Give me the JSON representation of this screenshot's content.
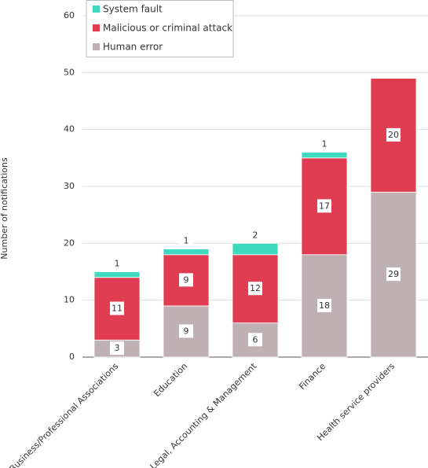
{
  "chart_data": {
    "type": "stacked-bar",
    "y_label": "Number of notifications",
    "categories": [
      "Business/Professional Associations",
      "Education",
      "Legal, Accounting & Management",
      "Finance",
      "Health service providers"
    ],
    "series": [
      {
        "name": "Human error",
        "color": "#bfb0b3",
        "values": [
          3,
          9,
          6,
          18,
          29
        ]
      },
      {
        "name": "Malicious or criminal attack",
        "color": "#e03c52",
        "values": [
          11,
          9,
          12,
          17,
          20
        ]
      },
      {
        "name": "System fault",
        "color": "#3fd9c0",
        "values": [
          1,
          1,
          2,
          1,
          null
        ]
      }
    ],
    "ylim": [
      0,
      60
    ],
    "yticks": [
      0,
      10,
      20,
      30,
      40,
      50,
      60
    ],
    "grid": true,
    "legend": "top-left"
  }
}
